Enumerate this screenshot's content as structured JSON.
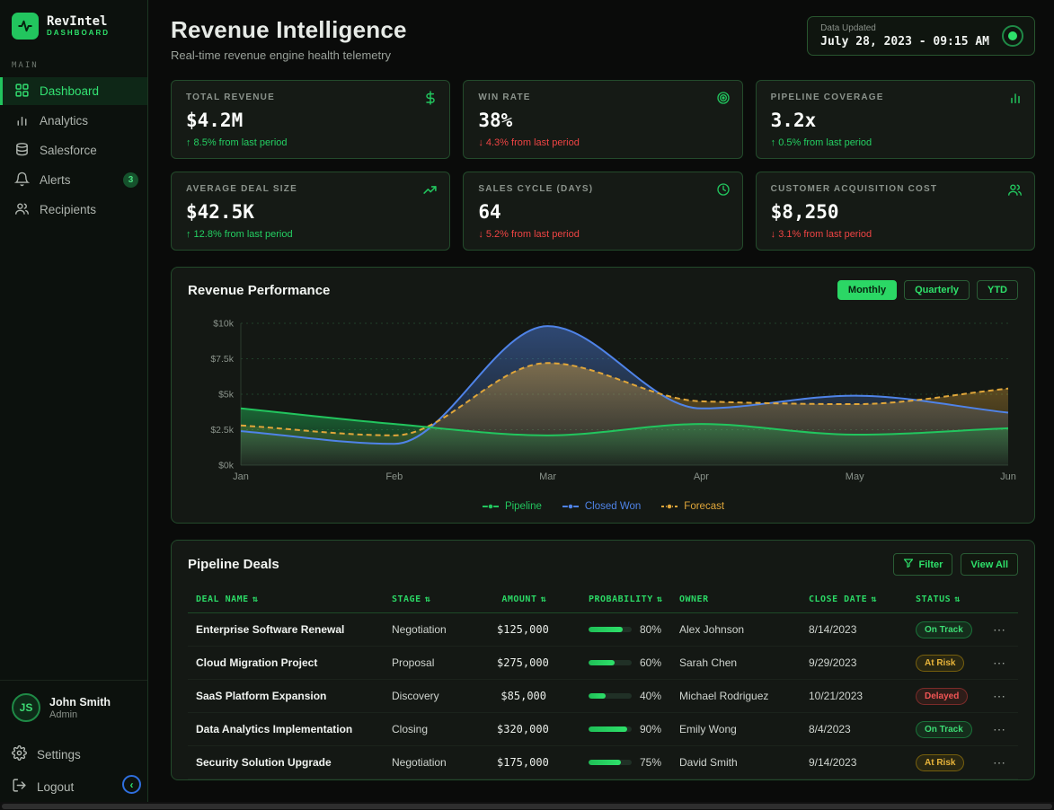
{
  "app": {
    "name": "RevIntel",
    "tagline": "DASHBOARD"
  },
  "sidebar": {
    "section_label": "MAIN",
    "items": [
      {
        "label": "Dashboard",
        "icon": "grid"
      },
      {
        "label": "Analytics",
        "icon": "bar-chart"
      },
      {
        "label": "Salesforce",
        "icon": "database"
      },
      {
        "label": "Alerts",
        "icon": "bell",
        "badge": "3"
      },
      {
        "label": "Recipients",
        "icon": "users"
      }
    ],
    "user": {
      "initials": "JS",
      "name": "John Smith",
      "role": "Admin"
    },
    "settings_label": "Settings",
    "logout_label": "Logout",
    "collapse_icon": "‹"
  },
  "header": {
    "title": "Revenue Intelligence",
    "subtitle": "Real-time revenue engine health telemetry",
    "updated_label": "Data Updated",
    "updated_value": "July 28, 2023 - 09:15 AM"
  },
  "kpis": [
    {
      "label": "TOTAL REVENUE",
      "value": "$4.2M",
      "delta": "↑ 8.5% from last period",
      "trend": "up",
      "icon": "dollar"
    },
    {
      "label": "WIN RATE",
      "value": "38%",
      "delta": "↓ 4.3% from last period",
      "trend": "down",
      "icon": "target"
    },
    {
      "label": "PIPELINE COVERAGE",
      "value": "3.2x",
      "delta": "↑ 0.5% from last period",
      "trend": "up",
      "icon": "bar-chart"
    },
    {
      "label": "AVERAGE DEAL SIZE",
      "value": "$42.5K",
      "delta": "↑ 12.8% from last period",
      "trend": "up",
      "icon": "trending-up"
    },
    {
      "label": "SALES CYCLE (DAYS)",
      "value": "64",
      "delta": "↓ 5.2% from last period",
      "trend": "down",
      "icon": "clock"
    },
    {
      "label": "CUSTOMER ACQUISITION COST",
      "value": "$8,250",
      "delta": "↓ 3.1% from last period",
      "trend": "down",
      "icon": "users"
    }
  ],
  "chart_card": {
    "title": "Revenue Performance",
    "range_buttons": [
      {
        "label": "Monthly",
        "active": true
      },
      {
        "label": "Quarterly",
        "active": false
      },
      {
        "label": "YTD",
        "active": false
      }
    ]
  },
  "chart_data": {
    "type": "area",
    "x": [
      "Jan",
      "Feb",
      "Mar",
      "Apr",
      "May",
      "Jun"
    ],
    "series": [
      {
        "name": "Pipeline",
        "color": "#22c55e",
        "style": "solid",
        "values": [
          4.0,
          2.9,
          2.1,
          2.9,
          2.15,
          2.6
        ]
      },
      {
        "name": "Closed Won",
        "color": "#4f83e8",
        "style": "solid",
        "values": [
          2.4,
          1.5,
          9.8,
          4.0,
          4.9,
          3.7
        ]
      },
      {
        "name": "Forecast",
        "color": "#e0a63a",
        "style": "dashed",
        "values": [
          2.8,
          2.1,
          7.2,
          4.5,
          4.3,
          5.4
        ]
      }
    ],
    "y_ticks": [
      "$0k",
      "$2.5k",
      "$5k",
      "$7.5k",
      "$10k"
    ],
    "ylim": [
      0,
      10
    ],
    "unit": "$k",
    "grid": "dotted horizontal",
    "legend_position": "bottom"
  },
  "deals": {
    "title": "Pipeline Deals",
    "filter_label": "Filter",
    "view_all_label": "View All",
    "sort_icon": "⇅",
    "row_menu_icon": "⋯",
    "columns": [
      "DEAL NAME",
      "STAGE",
      "AMOUNT",
      "PROBABILITY",
      "OWNER",
      "CLOSE DATE",
      "STATUS"
    ],
    "rows": [
      {
        "name": "Enterprise Software Renewal",
        "stage": "Negotiation",
        "amount": "$125,000",
        "probability": 80,
        "probability_label": "80%",
        "owner": "Alex Johnson",
        "close_date": "8/14/2023",
        "status": "On Track"
      },
      {
        "name": "Cloud Migration Project",
        "stage": "Proposal",
        "amount": "$275,000",
        "probability": 60,
        "probability_label": "60%",
        "owner": "Sarah Chen",
        "close_date": "9/29/2023",
        "status": "At Risk"
      },
      {
        "name": "SaaS Platform Expansion",
        "stage": "Discovery",
        "amount": "$85,000",
        "probability": 40,
        "probability_label": "40%",
        "owner": "Michael Rodriguez",
        "close_date": "10/21/2023",
        "status": "Delayed"
      },
      {
        "name": "Data Analytics Implementation",
        "stage": "Closing",
        "amount": "$320,000",
        "probability": 90,
        "probability_label": "90%",
        "owner": "Emily Wong",
        "close_date": "8/4/2023",
        "status": "On Track"
      },
      {
        "name": "Security Solution Upgrade",
        "stage": "Negotiation",
        "amount": "$175,000",
        "probability": 75,
        "probability_label": "75%",
        "owner": "David Smith",
        "close_date": "9/14/2023",
        "status": "At Risk"
      }
    ]
  },
  "colors": {
    "accent_green": "#22c55e",
    "bright_green": "#2ee06a",
    "negative_red": "#ef4444",
    "warn_amber": "#e8b43a",
    "blue_series": "#4f83e8",
    "orange_series": "#e0a63a",
    "card_border": "#234a2b",
    "card_bg": "#151a15",
    "page_bg": "#0a0b0a"
  }
}
